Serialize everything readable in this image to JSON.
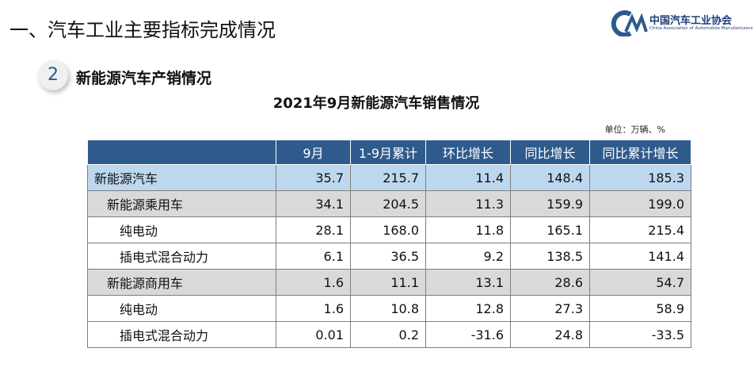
{
  "header": {
    "title": "一、汽车工业主要指标完成情况"
  },
  "logo": {
    "name_cn": "中国汽车工业协会",
    "name_en": "China Association of Automobile Manufacturers"
  },
  "section": {
    "number": "2",
    "title": "新能源汽车产销情况"
  },
  "table": {
    "title": "2021年9月新能源汽车销售情况",
    "unit": "单位：万辆、%",
    "columns": [
      "",
      "9月",
      "1-9月累计",
      "环比增长",
      "同比增长",
      "同比累计增长"
    ],
    "rows": [
      [
        "新能源汽车",
        "35.7",
        "215.7",
        "11.4",
        "148.4",
        "185.3"
      ],
      [
        "新能源乘用车",
        "34.1",
        "204.5",
        "11.3",
        "159.9",
        "199.0"
      ],
      [
        "纯电动",
        "28.1",
        "168.0",
        "11.8",
        "165.1",
        "215.4"
      ],
      [
        "插电式混合动力",
        "6.1",
        "36.5",
        "9.2",
        "138.5",
        "141.4"
      ],
      [
        "新能源商用车",
        "1.6",
        "11.1",
        "13.1",
        "28.6",
        "54.7"
      ],
      [
        "纯电动",
        "1.6",
        "10.8",
        "12.8",
        "27.3",
        "58.9"
      ],
      [
        "插电式混合动力",
        "0.01",
        "0.2",
        "-31.6",
        "24.8",
        "-33.5"
      ]
    ]
  }
}
